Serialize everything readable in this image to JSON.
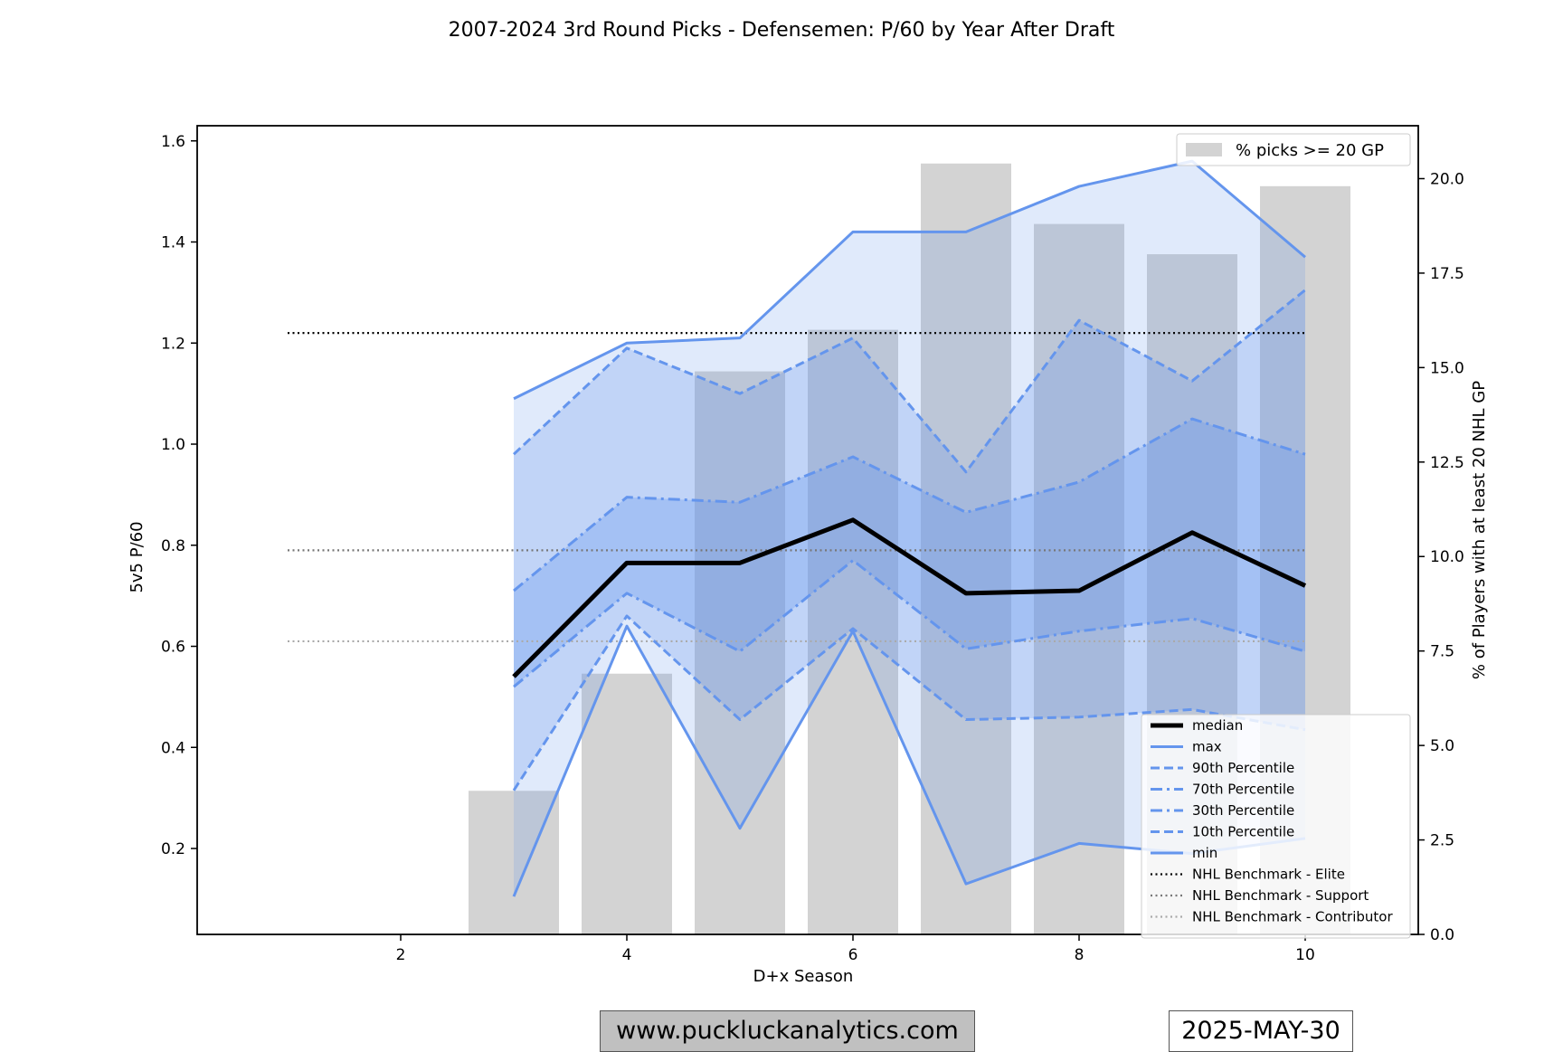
{
  "chart_data": {
    "type": "line",
    "title": "2007-2024 3rd Round Picks - Defensemen: P/60 by Year After Draft",
    "xlabel": "D+x Season",
    "ylabel": "5v5 P/60",
    "y2label": "% of Players with at least 20 NHL GP",
    "xlim": [
      0.2,
      11.0
    ],
    "ylim": [
      0.03,
      1.63
    ],
    "y2lim": [
      0.0,
      21.4
    ],
    "xticks": [
      2,
      4,
      6,
      8,
      10
    ],
    "yticks": [
      0.2,
      0.4,
      0.6,
      0.8,
      1.0,
      1.2,
      1.4,
      1.6
    ],
    "y2ticks": [
      0.0,
      2.5,
      5.0,
      7.5,
      10.0,
      12.5,
      15.0,
      17.5,
      20.0
    ],
    "x": [
      3,
      4,
      5,
      6,
      7,
      8,
      9,
      10
    ],
    "series": [
      {
        "name": "max",
        "style": "solid",
        "color": "#6495ed",
        "values": [
          1.09,
          1.2,
          1.21,
          1.42,
          1.42,
          1.51,
          1.56,
          1.37
        ]
      },
      {
        "name": "90th Percentile",
        "style": "dash",
        "color": "#6495ed",
        "values": [
          0.98,
          1.19,
          1.1,
          1.21,
          0.945,
          1.245,
          1.125,
          1.305
        ]
      },
      {
        "name": "70th Percentile",
        "style": "dashdot",
        "color": "#6495ed",
        "values": [
          0.71,
          0.895,
          0.885,
          0.975,
          0.865,
          0.925,
          1.05,
          0.98
        ]
      },
      {
        "name": "median",
        "style": "solid",
        "color": "#000000",
        "values": [
          0.54,
          0.765,
          0.765,
          0.85,
          0.705,
          0.71,
          0.825,
          0.72
        ]
      },
      {
        "name": "30th Percentile",
        "style": "dashdot",
        "color": "#6495ed",
        "values": [
          0.52,
          0.705,
          0.59,
          0.77,
          0.595,
          0.63,
          0.655,
          0.59
        ]
      },
      {
        "name": "10th Percentile",
        "style": "dash",
        "color": "#6495ed",
        "values": [
          0.315,
          0.66,
          0.455,
          0.635,
          0.455,
          0.46,
          0.475,
          0.435
        ]
      },
      {
        "name": "min",
        "style": "solid",
        "color": "#6495ed",
        "values": [
          0.105,
          0.64,
          0.24,
          0.63,
          0.13,
          0.21,
          0.19,
          0.22
        ]
      }
    ],
    "benchmarks": [
      {
        "name": "NHL Benchmark - Elite",
        "value": 1.22,
        "color": "#000000"
      },
      {
        "name": "NHL Benchmark - Support",
        "value": 0.79,
        "color": "#777777"
      },
      {
        "name": "NHL Benchmark - Contributor",
        "value": 0.61,
        "color": "#aaaaaa"
      }
    ],
    "benchmark_x_range": [
      1,
      10
    ],
    "bars": {
      "name": "% picks >= 20 GP",
      "color": "#d3d3d3",
      "x": [
        3,
        4,
        5,
        6,
        7,
        8,
        9,
        10
      ],
      "values": [
        3.8,
        6.9,
        14.9,
        16.0,
        20.4,
        18.8,
        18.0,
        19.8
      ]
    },
    "legend_main_order": [
      "median",
      "max",
      "90th Percentile",
      "70th Percentile",
      "30th Percentile",
      "10th Percentile",
      "min",
      "NHL Benchmark - Elite",
      "NHL Benchmark - Support",
      "NHL Benchmark - Contributor"
    ],
    "legend_main_position": "lower-right",
    "legend_bars_position": "upper-right"
  },
  "footer": {
    "website": "www.puckluckanalytics.com",
    "date": "2025-MAY-30"
  }
}
